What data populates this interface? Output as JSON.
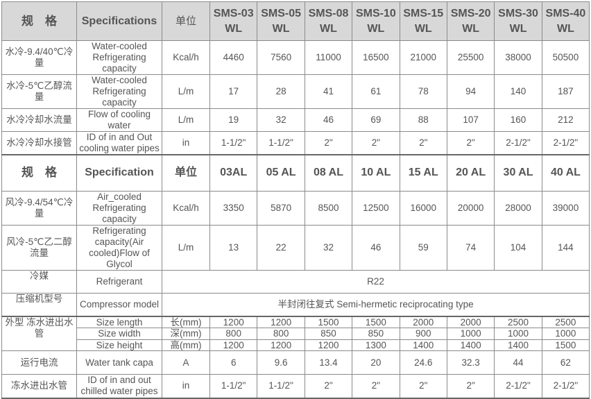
{
  "header1": [
    "规　格",
    "Specifications",
    "单位",
    "SMS-03 WL",
    "SMS-05 WL",
    "SMS-08 WL",
    "SMS-10 WL",
    "SMS-15 WL",
    "SMS-20 WL",
    "SMS-30 WL",
    "SMS-40 WL"
  ],
  "water_rows": [
    [
      "水冷-9.4/40℃冷量",
      "Water-cooled Refrigerating capacity",
      "Kcal/h",
      "4460",
      "7560",
      "11000",
      "16500",
      "21000",
      "25500",
      "38000",
      "50500"
    ],
    [
      "水冷-5℃乙醇流量",
      "Water-cooled Refrigerating capacity",
      "L/m",
      "17",
      "28",
      "41",
      "61",
      "78",
      "94",
      "140",
      "187"
    ],
    [
      "水冷冷却水流量",
      "Flow of cooling water",
      "L/m",
      "19",
      "32",
      "46",
      "69",
      "88",
      "107",
      "160",
      "212"
    ],
    [
      "水冷冷却水接管",
      "ID of in and Out cooling water pipes",
      "in",
      "1-1/2\"",
      "1-1/2\"",
      "2\"",
      "2\"",
      "2\"",
      "2\"",
      "2-1/2\"",
      "2-1/2\""
    ]
  ],
  "header2": [
    "规　格",
    "Specification",
    "单位",
    "03AL",
    "05 AL",
    "08 AL",
    "10 AL",
    "15 AL",
    "20 AL",
    "30 AL",
    "40 AL"
  ],
  "air_rows": [
    [
      "风冷-9.4/54℃冷量",
      "Air_cooled Refrigerating capacity",
      "Kcal/h",
      "3350",
      "5870",
      "8500",
      "12500",
      "16000",
      "20000",
      "28000",
      "39000"
    ],
    [
      "风冷-5℃乙二醇流量",
      "Refrigerating capacity(Air cooled)Flow of Glycol",
      "L/m",
      "13",
      "22",
      "32",
      "46",
      "59",
      "74",
      "104",
      "144"
    ]
  ],
  "refrigerant": {
    "zh": "冷媒",
    "en": "Refrigerant",
    "value": "R22"
  },
  "compressor": {
    "zh": "压缩机型号",
    "en": "Compressor model",
    "value": "半封闭往复式 Semi-hermetic reciprocating type"
  },
  "size": {
    "zh": "外型 冻水进出水管",
    "rows": [
      [
        "Size length",
        "长(mm)",
        "1200",
        "1200",
        "1500",
        "1500",
        "2000",
        "2000",
        "2500",
        "2500"
      ],
      [
        "Size width",
        "深(mm)",
        "800",
        "800",
        "850",
        "850",
        "900",
        "1000",
        "1000",
        "1000"
      ],
      [
        "Size height",
        "高(mm)",
        "1200",
        "1200",
        "1200",
        "1300",
        "1400",
        "1400",
        "1400",
        "1500"
      ]
    ]
  },
  "tail_rows": [
    [
      "运行电流",
      "Water tank capa",
      "A",
      "6",
      "9.6",
      "13.4",
      "20",
      "24.6",
      "32.3",
      "44",
      "62"
    ],
    [
      "冻水进出水管",
      "ID of in and out chilled water pipes",
      "in",
      "1-1/2\"",
      "1-1/2\"",
      "2\"",
      "2\"",
      "2\"",
      "2\"",
      "2-1/2\"",
      "2-1/2\""
    ]
  ]
}
